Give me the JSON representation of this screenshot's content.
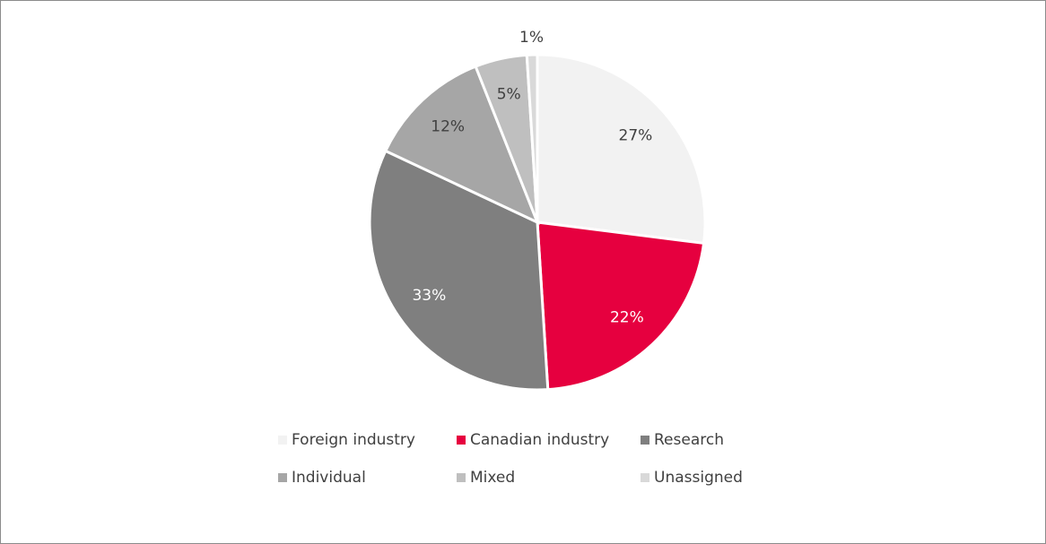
{
  "chart_data": {
    "type": "pie",
    "categories": [
      "Foreign industry",
      "Canadian industry",
      "Research",
      "Individual",
      "Mixed",
      "Unassigned"
    ],
    "values": [
      27,
      22,
      33,
      12,
      5,
      1
    ],
    "value_labels": [
      "27%",
      "22%",
      "33%",
      "12%",
      "5%",
      "1%"
    ],
    "colors": [
      "#f2f2f2",
      "#e6003f",
      "#7f7f7f",
      "#a6a6a6",
      "#bfbfbf",
      "#d9d9d9"
    ],
    "legend": "bottom"
  }
}
